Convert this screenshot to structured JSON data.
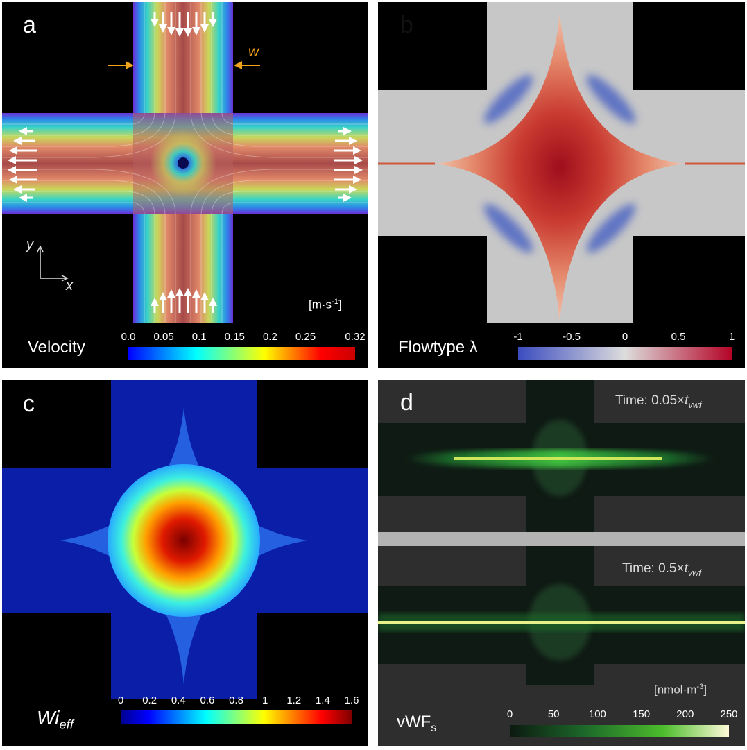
{
  "panel_a": {
    "letter": "a",
    "title": "Velocity",
    "unit_base": "[m·s",
    "unit_exp": "-1",
    "unit_close": "]",
    "width_label": "w",
    "axis_x": "x",
    "axis_y": "y",
    "colorbar_ticks": [
      "0.0",
      "0.05",
      "0.1",
      "0.15",
      "0.2",
      "0.25",
      "0.32"
    ],
    "colorbar_range": [
      0.0,
      0.32
    ]
  },
  "panel_b": {
    "letter": "b",
    "title": "Flowtype λ",
    "colorbar_ticks": [
      "-1",
      "-0.5",
      "0",
      "0.5",
      "1"
    ],
    "colorbar_range": [
      -1,
      1
    ]
  },
  "panel_c": {
    "letter": "c",
    "title_main": "Wi",
    "title_sub": "eff",
    "colorbar_ticks": [
      "0",
      "0.2",
      "0.4",
      "0.6",
      "0.8",
      "1",
      "1.2",
      "1.4",
      "1.6"
    ],
    "colorbar_range": [
      0,
      1.6
    ]
  },
  "panel_d": {
    "letter": "d",
    "title_main": "vWF",
    "title_sub": "s",
    "time_top_prefix": "Time: 0.05×",
    "time_bottom_prefix": "Time: 0.5×",
    "time_var": "t",
    "time_sub": "vwf",
    "unit": "[nmol·m",
    "unit_exp": "-3",
    "unit_close": "]",
    "colorbar_ticks": [
      "0",
      "50",
      "100",
      "150",
      "200",
      "250"
    ],
    "colorbar_range": [
      0,
      250
    ]
  }
}
